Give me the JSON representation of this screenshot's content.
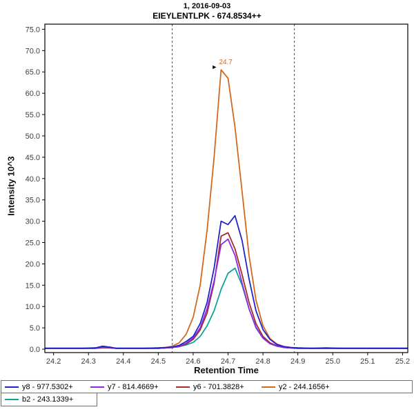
{
  "title": {
    "line1": "1, 2016-09-03",
    "line2": "EIEYLENTLPK - 674.8534++"
  },
  "chart_data": {
    "type": "line",
    "title": "1, 2016-09-03",
    "subtitle": "EIEYLENTLPK - 674.8534++",
    "xlabel": "Retention Time",
    "ylabel": "Intensity 10^3",
    "legend_position": "bottom",
    "grid": false,
    "x_axis": {
      "range": [
        24.175,
        25.215
      ],
      "ticks": [
        24.2,
        24.3,
        24.4,
        24.5,
        24.6,
        24.7,
        24.8,
        24.9,
        25.0,
        25.1,
        25.2
      ]
    },
    "y_axis": {
      "range": [
        -0.8,
        76.2
      ],
      "ticks": [
        0,
        5,
        10,
        15,
        20,
        25,
        30,
        35,
        40,
        45,
        50,
        55,
        60,
        65,
        70,
        75
      ]
    },
    "boundaries": [
      24.54,
      24.89
    ],
    "annotation": {
      "x": 24.68,
      "y": 65.5,
      "label": "24.7",
      "color": "#D2691E"
    },
    "x": [
      24.175,
      24.2,
      24.24,
      24.28,
      24.32,
      24.34,
      24.36,
      24.38,
      24.42,
      24.46,
      24.5,
      24.52,
      24.54,
      24.56,
      24.58,
      24.6,
      24.62,
      24.64,
      24.66,
      24.68,
      24.7,
      24.72,
      24.74,
      24.76,
      24.78,
      24.8,
      24.82,
      24.84,
      24.86,
      24.88,
      24.9,
      24.94,
      24.98,
      25.02,
      25.06,
      25.1,
      25.14,
      25.18,
      25.215
    ],
    "draw_order": [
      4,
      3,
      2,
      1,
      0
    ],
    "series": [
      {
        "name": "y8",
        "label": "y8 - 977.5302+",
        "color": "#2222CC",
        "values": [
          0.2,
          0.2,
          0.2,
          0.2,
          0.3,
          0.7,
          0.5,
          0.2,
          0.2,
          0.2,
          0.3,
          0.4,
          0.5,
          0.9,
          1.8,
          3.0,
          6.0,
          11.0,
          19.0,
          30.0,
          29.2,
          31.3,
          25.5,
          16.5,
          9.0,
          4.6,
          2.3,
          1.1,
          0.6,
          0.4,
          0.3,
          0.2,
          0.3,
          0.2,
          0.2,
          0.2,
          0.2,
          0.2,
          0.2
        ]
      },
      {
        "name": "y7",
        "label": "y7 - 814.4669+",
        "color": "#8A2BE2",
        "values": [
          0.2,
          0.2,
          0.2,
          0.2,
          0.2,
          0.5,
          0.4,
          0.2,
          0.2,
          0.2,
          0.2,
          0.3,
          0.4,
          0.7,
          1.4,
          2.6,
          5.0,
          9.5,
          16.0,
          24.5,
          25.8,
          22.0,
          15.5,
          9.5,
          5.0,
          2.6,
          1.3,
          0.7,
          0.4,
          0.3,
          0.2,
          0.2,
          0.2,
          0.2,
          0.2,
          0.2,
          0.2,
          0.2,
          0.2
        ]
      },
      {
        "name": "y6",
        "label": "y6 - 701.3828+",
        "color": "#A52A2A",
        "values": [
          0.2,
          0.2,
          0.2,
          0.2,
          0.2,
          0.4,
          0.3,
          0.2,
          0.2,
          0.2,
          0.2,
          0.3,
          0.4,
          0.6,
          1.2,
          2.3,
          4.5,
          8.5,
          15.5,
          26.5,
          27.3,
          23.5,
          17.5,
          11.0,
          6.0,
          3.0,
          1.5,
          0.8,
          0.4,
          0.3,
          0.2,
          0.2,
          0.2,
          0.2,
          0.2,
          0.2,
          0.2,
          0.2,
          0.2
        ]
      },
      {
        "name": "y2",
        "label": "y2 - 244.1656+",
        "color": "#D2691E",
        "values": [
          0.2,
          0.2,
          0.2,
          0.2,
          0.3,
          0.6,
          0.4,
          0.2,
          0.2,
          0.2,
          0.3,
          0.4,
          0.7,
          1.5,
          3.5,
          7.5,
          15.0,
          28.0,
          45.0,
          65.5,
          63.5,
          52.0,
          37.0,
          22.0,
          11.5,
          5.5,
          2.5,
          1.2,
          0.6,
          0.4,
          0.3,
          0.2,
          0.2,
          0.2,
          0.2,
          0.2,
          0.2,
          0.2,
          0.2
        ]
      },
      {
        "name": "b2",
        "label": "b2 - 243.1339+",
        "color": "#11A295",
        "values": [
          0.2,
          0.2,
          0.2,
          0.2,
          0.2,
          0.3,
          0.3,
          0.2,
          0.2,
          0.2,
          0.2,
          0.3,
          0.4,
          0.6,
          1.0,
          1.6,
          3.0,
          5.5,
          9.0,
          14.0,
          17.8,
          19.0,
          15.0,
          9.5,
          5.2,
          2.6,
          1.3,
          0.7,
          0.4,
          0.3,
          0.2,
          0.2,
          0.2,
          0.2,
          0.2,
          0.2,
          0.2,
          0.2,
          0.2
        ]
      }
    ]
  }
}
